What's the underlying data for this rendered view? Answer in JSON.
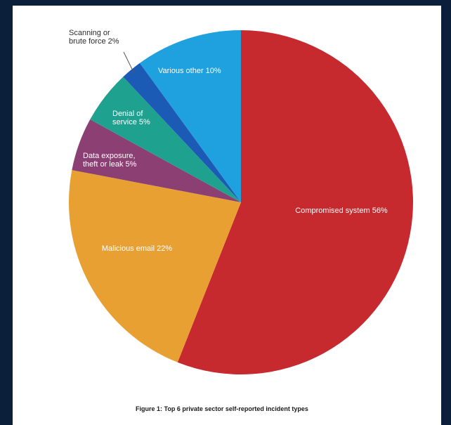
{
  "chart_data": {
    "type": "pie",
    "caption": "Figure 1: Top 6 private sector self-reported incident types",
    "slices": [
      {
        "label": "Compromised system 56%",
        "category": "Compromised system",
        "value": 56,
        "color": "#c62a2f"
      },
      {
        "label": "Malicious email 22%",
        "category": "Malicious email",
        "value": 22,
        "color": "#e8a033"
      },
      {
        "label": "Data exposure, theft or leak 5%",
        "category": "Data exposure, theft or leak",
        "value": 5,
        "color": "#8b3f72",
        "lines": [
          "Data exposure,",
          "theft or leak 5%"
        ]
      },
      {
        "label": "Denial of service 5%",
        "category": "Denial of service",
        "value": 5,
        "color": "#1fa18f",
        "lines": [
          "Denial of",
          "service 5%"
        ]
      },
      {
        "label": "Scanning or brute force 2%",
        "category": "Scanning or brute force",
        "value": 2,
        "color": "#1c5bb5",
        "lines": [
          "Scanning or",
          "brute force 2%"
        ],
        "external": true
      },
      {
        "label": "Various other 10%",
        "category": "Various other",
        "value": 10,
        "color": "#1fa0df"
      }
    ]
  }
}
